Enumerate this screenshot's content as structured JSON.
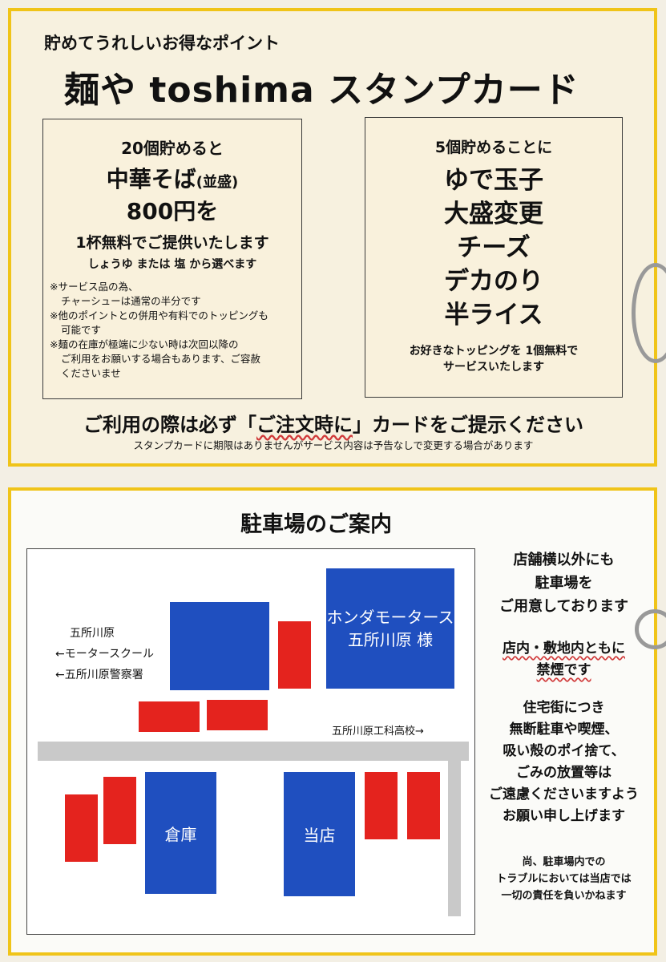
{
  "stamp_card": {
    "subtitle": "貯めてうれしいお得なポイント",
    "title": "麺や toshima スタンプカード",
    "left": {
      "head": "20個貯めると",
      "item": "中華そば",
      "item_note": "(並盛)",
      "price": "800円を",
      "offer": "1杯無料でご提供いたします",
      "choice": "しょうゆ または 塩 から選べます",
      "notes": [
        "※サービス品の為、",
        "チャーシューは通常の半分です",
        "※他のポイントとの併用や有料でのトッピングも",
        "可能です",
        "※麺の在庫が極端に少ない時は次回以降の",
        "ご利用をお願いする場合もあります、ご容赦",
        "くださいませ"
      ]
    },
    "right": {
      "head": "5個貯めることに",
      "items": [
        "ゆで玉子",
        "大盛変更",
        "チーズ",
        "デカのり",
        "半ライス"
      ],
      "footer": [
        "お好きなトッピングを 1個無料で",
        "サービスいたします"
      ]
    },
    "notice_pre": "ご利用の際は必ず「",
    "notice_em": "ご注文時に",
    "notice_post": "」カードをご提示ください",
    "fine_print": "スタンプカードに期限はありませんがサービス内容は予告なしで変更する場合があります"
  },
  "parking": {
    "title": "駐車場のご案内",
    "map": {
      "left_labels": [
        "五所川原",
        "←モータースクール",
        "←五所川原警察署"
      ],
      "honda": [
        "ホンダモータース",
        "五所川原 様"
      ],
      "school": "五所川原工科高校→",
      "warehouse": "倉庫",
      "shop": "当店"
    },
    "side": {
      "p1": [
        "店舗横以外にも",
        "駐車場を",
        "ご用意しております"
      ],
      "p2": [
        "店内・敷地内ともに",
        "禁煙です"
      ],
      "p3": [
        "住宅街につき",
        "無断駐車や喫煙、",
        "吸い殻のポイ捨て、",
        "ごみの放置等は",
        "ご遠慮くださいますよう",
        "お願い申し上げます"
      ],
      "p4": [
        "尚、駐車場内での",
        "トラブルにおいては当店では",
        "一切の責任を負いかねます"
      ]
    }
  },
  "colors": {
    "frame": "#f0c419",
    "building": "#1f4fbf",
    "parking": "#e4231e",
    "road": "#c9c9c9"
  }
}
